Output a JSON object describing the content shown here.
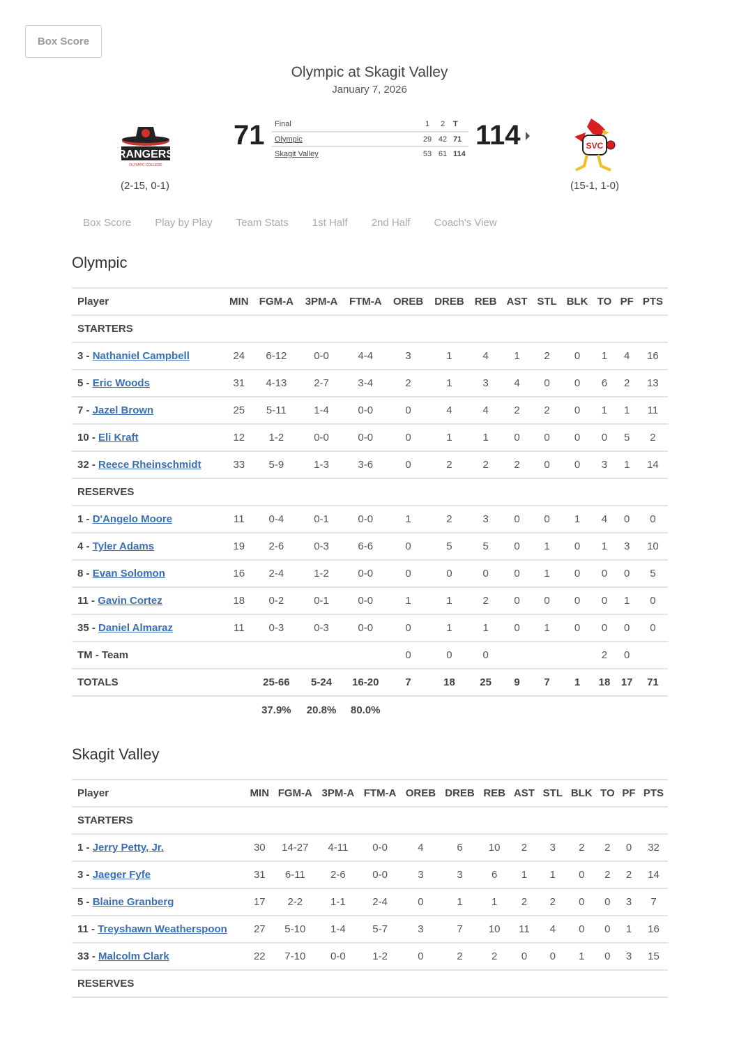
{
  "top_button": "Box Score",
  "game": {
    "title": "Olympic at Skagit Valley",
    "date": "January 7, 2026"
  },
  "away": {
    "name": "Olympic",
    "logo_text": "RANGERS",
    "logo_sub": "OLYMPIC COLLEGE",
    "record": "(2-15, 0-1)",
    "score": "71",
    "periods": [
      "29",
      "42"
    ],
    "total": "71"
  },
  "home": {
    "name": "Skagit Valley",
    "logo_text": "SVC",
    "record": "(15-1, 1-0)",
    "score": "114",
    "periods": [
      "53",
      "61"
    ],
    "total": "114"
  },
  "linescore": {
    "status": "Final",
    "headers": [
      "1",
      "2",
      "T"
    ]
  },
  "colors": {
    "link": "#3a6fb5",
    "away_logo": "#d32f2f",
    "home_logo": "#d81e1e"
  },
  "tabs": [
    "Box Score",
    "Play by Play",
    "Team Stats",
    "1st Half",
    "2nd Half",
    "Coach's View"
  ],
  "columns": [
    "Player",
    "MIN",
    "FGM-A",
    "3PM-A",
    "FTM-A",
    "OREB",
    "DREB",
    "REB",
    "AST",
    "STL",
    "BLK",
    "TO",
    "PF",
    "PTS"
  ],
  "teams": [
    {
      "name": "Olympic",
      "sections": [
        {
          "label": "STARTERS",
          "rows": [
            {
              "num": "3",
              "player": "Nathaniel Campbell",
              "stats": [
                "24",
                "6-12",
                "0-0",
                "4-4",
                "3",
                "1",
                "4",
                "1",
                "2",
                "0",
                "1",
                "4",
                "16"
              ]
            },
            {
              "num": "5",
              "player": "Eric Woods",
              "stats": [
                "31",
                "4-13",
                "2-7",
                "3-4",
                "2",
                "1",
                "3",
                "4",
                "0",
                "0",
                "6",
                "2",
                "13"
              ]
            },
            {
              "num": "7",
              "player": "Jazel Brown",
              "stats": [
                "25",
                "5-11",
                "1-4",
                "0-0",
                "0",
                "4",
                "4",
                "2",
                "2",
                "0",
                "1",
                "1",
                "11"
              ]
            },
            {
              "num": "10",
              "player": "Eli Kraft",
              "stats": [
                "12",
                "1-2",
                "0-0",
                "0-0",
                "0",
                "1",
                "1",
                "0",
                "0",
                "0",
                "0",
                "5",
                "2"
              ]
            },
            {
              "num": "32",
              "player": "Reece Rheinschmidt",
              "stats": [
                "33",
                "5-9",
                "1-3",
                "3-6",
                "0",
                "2",
                "2",
                "2",
                "0",
                "0",
                "3",
                "1",
                "14"
              ]
            }
          ]
        },
        {
          "label": "RESERVES",
          "rows": [
            {
              "num": "1",
              "player": "D'Angelo Moore",
              "stats": [
                "11",
                "0-4",
                "0-1",
                "0-0",
                "1",
                "2",
                "3",
                "0",
                "0",
                "1",
                "4",
                "0",
                "0"
              ]
            },
            {
              "num": "4",
              "player": "Tyler Adams",
              "stats": [
                "19",
                "2-6",
                "0-3",
                "6-6",
                "0",
                "5",
                "5",
                "0",
                "1",
                "0",
                "1",
                "3",
                "10"
              ]
            },
            {
              "num": "8",
              "player": "Evan Solomon",
              "stats": [
                "16",
                "2-4",
                "1-2",
                "0-0",
                "0",
                "0",
                "0",
                "0",
                "1",
                "0",
                "0",
                "0",
                "5"
              ]
            },
            {
              "num": "11",
              "player": "Gavin Cortez",
              "stats": [
                "18",
                "0-2",
                "0-1",
                "0-0",
                "1",
                "1",
                "2",
                "0",
                "0",
                "0",
                "0",
                "1",
                "0"
              ]
            },
            {
              "num": "35",
              "player": "Daniel Almaraz",
              "stats": [
                "11",
                "0-3",
                "0-3",
                "0-0",
                "0",
                "1",
                "1",
                "0",
                "1",
                "0",
                "0",
                "0",
                "0"
              ]
            }
          ]
        }
      ],
      "team_row": {
        "label": "TM - Team",
        "stats": [
          "",
          "",
          "",
          "",
          "0",
          "0",
          "0",
          "",
          "",
          "",
          "2",
          "0",
          ""
        ]
      },
      "totals": {
        "label": "TOTALS",
        "stats": [
          "",
          "25-66",
          "5-24",
          "16-20",
          "7",
          "18",
          "25",
          "9",
          "7",
          "1",
          "18",
          "17",
          "71"
        ]
      },
      "percentages": [
        "",
        "37.9%",
        "20.8%",
        "80.0%",
        "",
        "",
        "",
        "",
        "",
        "",
        "",
        "",
        ""
      ]
    },
    {
      "name": "Skagit Valley",
      "sections": [
        {
          "label": "STARTERS",
          "rows": [
            {
              "num": "1",
              "player": "Jerry Petty, Jr.",
              "stats": [
                "30",
                "14-27",
                "4-11",
                "0-0",
                "4",
                "6",
                "10",
                "2",
                "3",
                "2",
                "2",
                "0",
                "32"
              ]
            },
            {
              "num": "3",
              "player": "Jaeger Fyfe",
              "stats": [
                "31",
                "6-11",
                "2-6",
                "0-0",
                "3",
                "3",
                "6",
                "1",
                "1",
                "0",
                "2",
                "2",
                "14"
              ]
            },
            {
              "num": "5",
              "player": "Blaine Granberg",
              "stats": [
                "17",
                "2-2",
                "1-1",
                "2-4",
                "0",
                "1",
                "1",
                "2",
                "2",
                "0",
                "0",
                "3",
                "7"
              ]
            },
            {
              "num": "11",
              "player": "Treyshawn Weatherspoon",
              "stats": [
                "27",
                "5-10",
                "1-4",
                "5-7",
                "3",
                "7",
                "10",
                "11",
                "4",
                "0",
                "0",
                "1",
                "16"
              ]
            },
            {
              "num": "33",
              "player": "Malcolm Clark",
              "stats": [
                "22",
                "7-10",
                "0-0",
                "1-2",
                "0",
                "2",
                "2",
                "0",
                "0",
                "1",
                "0",
                "3",
                "15"
              ]
            }
          ]
        },
        {
          "label": "RESERVES",
          "rows": []
        }
      ]
    }
  ]
}
